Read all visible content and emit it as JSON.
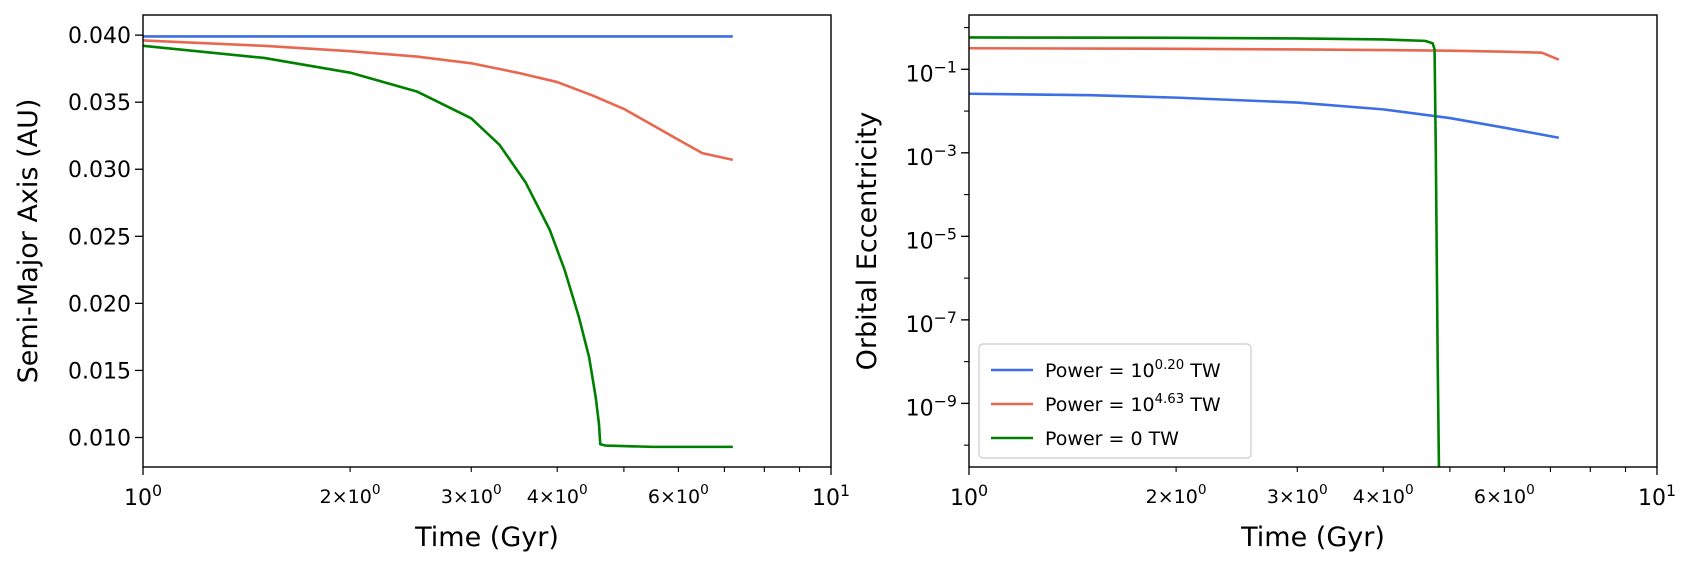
{
  "chart_data": [
    {
      "type": "line",
      "xlabel": "Time (Gyr)",
      "ylabel": "Semi-Major Axis (AU)",
      "xscale": "log",
      "xlim": [
        1,
        10
      ],
      "ylim": [
        0.0078,
        0.0415
      ],
      "x_major_ticks": [
        {
          "value": 1,
          "base": "10",
          "exp": "0"
        },
        {
          "value": 10,
          "base": "10",
          "exp": "1"
        }
      ],
      "x_minor_labels": [
        {
          "value": 2,
          "base": "2×10",
          "exp": "0"
        },
        {
          "value": 3,
          "base": "3×10",
          "exp": "0"
        },
        {
          "value": 4,
          "base": "4×10",
          "exp": "0"
        },
        {
          "value": 6,
          "base": "6×10",
          "exp": "0"
        }
      ],
      "y_ticks": [
        {
          "value": 0.01,
          "label": "0.010"
        },
        {
          "value": 0.015,
          "label": "0.015"
        },
        {
          "value": 0.02,
          "label": "0.020"
        },
        {
          "value": 0.025,
          "label": "0.025"
        },
        {
          "value": 0.03,
          "label": "0.030"
        },
        {
          "value": 0.035,
          "label": "0.035"
        },
        {
          "value": 0.04,
          "label": "0.040"
        }
      ],
      "series": [
        {
          "color": "#3c6ee6",
          "points": [
            [
              1.0,
              0.0399
            ],
            [
              2.0,
              0.0399
            ],
            [
              4.0,
              0.0399
            ],
            [
              7.2,
              0.0399
            ]
          ]
        },
        {
          "color": "#e8684f",
          "points": [
            [
              1.0,
              0.0396
            ],
            [
              1.5,
              0.0392
            ],
            [
              2.0,
              0.0388
            ],
            [
              2.5,
              0.0384
            ],
            [
              3.0,
              0.0379
            ],
            [
              3.5,
              0.0372
            ],
            [
              4.0,
              0.0365
            ],
            [
              4.5,
              0.0355
            ],
            [
              5.0,
              0.0345
            ],
            [
              5.5,
              0.0333
            ],
            [
              6.0,
              0.0322
            ],
            [
              6.5,
              0.0312
            ],
            [
              7.2,
              0.0307
            ]
          ]
        },
        {
          "color": "#008000",
          "points": [
            [
              1.0,
              0.0392
            ],
            [
              1.5,
              0.0383
            ],
            [
              2.0,
              0.0372
            ],
            [
              2.5,
              0.0358
            ],
            [
              3.0,
              0.0338
            ],
            [
              3.3,
              0.0318
            ],
            [
              3.6,
              0.029
            ],
            [
              3.9,
              0.0255
            ],
            [
              4.1,
              0.0225
            ],
            [
              4.3,
              0.019
            ],
            [
              4.45,
              0.016
            ],
            [
              4.55,
              0.013
            ],
            [
              4.6,
              0.011
            ],
            [
              4.62,
              0.0095
            ],
            [
              4.7,
              0.0094
            ],
            [
              5.5,
              0.0093
            ],
            [
              7.2,
              0.0093
            ]
          ]
        }
      ]
    },
    {
      "type": "line",
      "xlabel": "Time (Gyr)",
      "ylabel": "Orbital Eccentricity",
      "xscale": "log",
      "yscale": "log",
      "xlim": [
        1,
        10
      ],
      "ylim": [
        3e-11,
        2
      ],
      "x_major_ticks": [
        {
          "value": 1,
          "base": "10",
          "exp": "0"
        },
        {
          "value": 10,
          "base": "10",
          "exp": "1"
        }
      ],
      "x_minor_labels": [
        {
          "value": 2,
          "base": "2×10",
          "exp": "0"
        },
        {
          "value": 3,
          "base": "3×10",
          "exp": "0"
        },
        {
          "value": 4,
          "base": "4×10",
          "exp": "0"
        },
        {
          "value": 6,
          "base": "6×10",
          "exp": "0"
        }
      ],
      "y_ticks": [
        {
          "value": 1e-09,
          "base": "10",
          "exp": "−9"
        },
        {
          "value": 1e-07,
          "base": "10",
          "exp": "−7"
        },
        {
          "value": 1e-05,
          "base": "10",
          "exp": "−5"
        },
        {
          "value": 0.001,
          "base": "10",
          "exp": "−3"
        },
        {
          "value": 0.1,
          "base": "10",
          "exp": "−1"
        }
      ],
      "legend": {
        "position": "lower-left",
        "entries": [
          {
            "prefix": "Power = 10",
            "sup": "0.20",
            "suffix": " TW",
            "color": "#3c6ee6"
          },
          {
            "prefix": "Power = 10",
            "sup": "4.63",
            "suffix": " TW",
            "color": "#e8684f"
          },
          {
            "prefix": "Power = 0 TW",
            "sup": "",
            "suffix": "",
            "color": "#008000"
          }
        ]
      },
      "series": [
        {
          "color": "#3c6ee6",
          "points": [
            [
              1.0,
              0.026
            ],
            [
              1.5,
              0.024
            ],
            [
              2.0,
              0.021
            ],
            [
              3.0,
              0.016
            ],
            [
              4.0,
              0.011
            ],
            [
              5.0,
              0.0068
            ],
            [
              6.0,
              0.004
            ],
            [
              7.2,
              0.0023
            ]
          ]
        },
        {
          "color": "#e8684f",
          "points": [
            [
              1.0,
              0.32
            ],
            [
              2.0,
              0.31
            ],
            [
              3.0,
              0.3
            ],
            [
              4.0,
              0.29
            ],
            [
              5.0,
              0.28
            ],
            [
              6.0,
              0.265
            ],
            [
              6.8,
              0.25
            ],
            [
              7.2,
              0.17
            ]
          ]
        },
        {
          "color": "#008000",
          "points": [
            [
              1.0,
              0.58
            ],
            [
              2.0,
              0.57
            ],
            [
              3.0,
              0.55
            ],
            [
              4.0,
              0.52
            ],
            [
              4.6,
              0.48
            ],
            [
              4.72,
              0.42
            ],
            [
              4.75,
              0.3
            ],
            [
              4.77,
              0.001
            ],
            [
              4.8,
              1e-08
            ],
            [
              4.82,
              3e-11
            ]
          ]
        }
      ]
    }
  ]
}
